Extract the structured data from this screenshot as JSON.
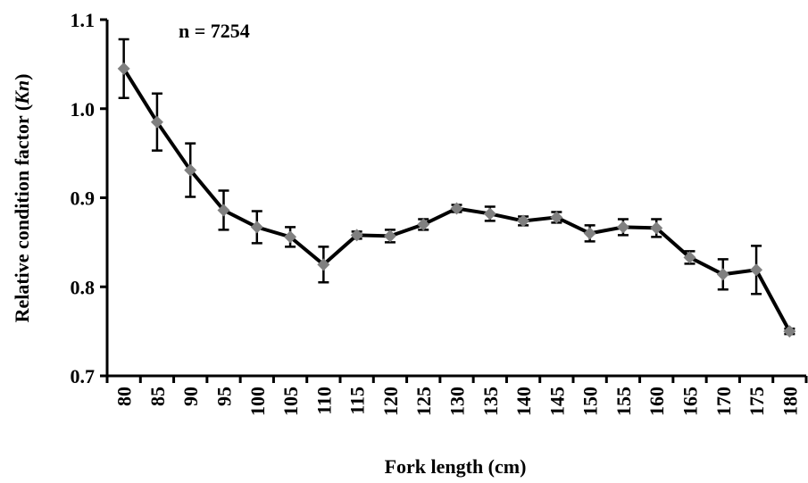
{
  "chart_data": {
    "type": "line",
    "x_label": "Fork length (cm)",
    "y_label": [
      "Relative  condition  factor (",
      "Kn",
      ")"
    ],
    "annotation": "n = 7254",
    "categories": [
      "80",
      "85",
      "90",
      "95",
      "100",
      "105",
      "110",
      "115",
      "120",
      "125",
      "130",
      "135",
      "140",
      "145",
      "150",
      "155",
      "160",
      "165",
      "170",
      "175",
      "180"
    ],
    "series": [
      {
        "color": "#000000",
        "marker_color": "#808080",
        "values": [
          1.045,
          0.985,
          0.931,
          0.886,
          0.867,
          0.856,
          0.825,
          0.858,
          0.857,
          0.87,
          0.888,
          0.882,
          0.874,
          0.878,
          0.86,
          0.867,
          0.866,
          0.833,
          0.814,
          0.819,
          0.75
        ],
        "errors": [
          0.033,
          0.032,
          0.03,
          0.022,
          0.018,
          0.011,
          0.02,
          0.004,
          0.007,
          0.006,
          0.004,
          0.008,
          0.005,
          0.006,
          0.009,
          0.009,
          0.01,
          0.007,
          0.017,
          0.027,
          0.003
        ]
      }
    ],
    "ylim": [
      0.7,
      1.1
    ],
    "yticks": [
      0.7,
      0.8,
      0.9,
      {
        "value": 1,
        "label": "1.0"
      },
      1.1
    ],
    "grid": false
  }
}
